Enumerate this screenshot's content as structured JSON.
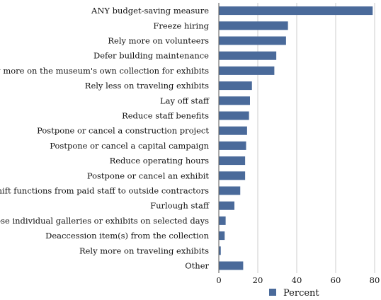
{
  "chart_data": {
    "type": "bar",
    "orientation": "horizontal",
    "categories": [
      "ANY budget-saving measure",
      "Freeze hiring",
      "Rely more on volunteers",
      "Defer building maintenance",
      "Rely more on the museum's own collection for exhibits",
      "Rely less on traveling exhibits",
      "Lay off staff",
      "Reduce staff benefits",
      "Postpone or cancel a construction project",
      "Postpone or cancel a capital campaign",
      "Reduce operating hours",
      "Postpone or cancel an exhibit",
      "Shift functions from paid staff to outside contractors",
      "Furlough staff",
      "Close individual galleries or exhibits on selected days",
      "Deaccession item(s) from the collection",
      "Rely more on traveling exhibits",
      "Other"
    ],
    "series": [
      {
        "name": "Percent",
        "values": [
          79,
          35.5,
          34.5,
          29.5,
          28.5,
          17,
          16,
          15.5,
          14.5,
          14,
          13.5,
          13.5,
          11,
          8,
          3.5,
          3,
          1,
          12.5
        ]
      }
    ],
    "x_ticks": [
      "0",
      "20",
      "40",
      "60",
      "80"
    ],
    "xlim": [
      0,
      80
    ],
    "grid": "vertical",
    "legend": "bottom",
    "bar_color": "#4a6a9a"
  }
}
